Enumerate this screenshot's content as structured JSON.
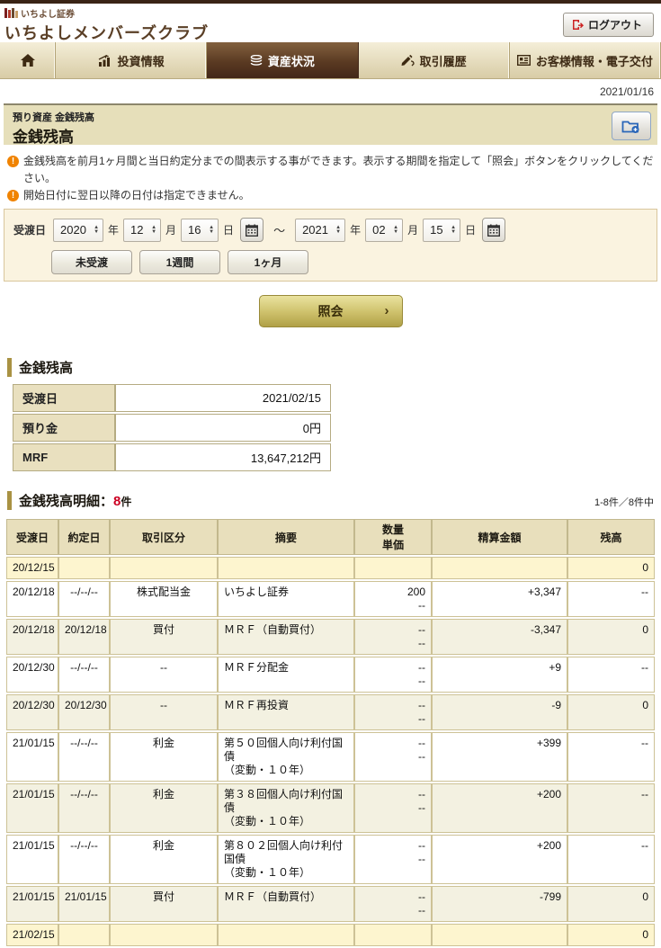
{
  "header": {
    "logo_text": "いちよし証券",
    "site_title": "いちよしメンバーズクラブ",
    "logout_label": "ログアウト"
  },
  "nav": {
    "tabs": [
      {
        "label": "投資情報",
        "icon": "chart"
      },
      {
        "label": "資産状況",
        "icon": "coins",
        "active": true
      },
      {
        "label": "取引履歴",
        "icon": "pen"
      },
      {
        "label": "お客様情報・電子交付",
        "icon": "card"
      }
    ]
  },
  "current_date": "2021/01/16",
  "page_header": {
    "breadcrumb": "預り資産 金銭残高",
    "title": "金銭残高"
  },
  "notices": [
    "金銭残高を前月1ヶ月間と当日約定分までの間表示する事ができます。表示する期間を指定して「照会」ボタンをクリックしてください。",
    "開始日付に翌日以降の日付は指定できません。"
  ],
  "search_form": {
    "field_label": "受渡日",
    "from": {
      "year": "2020",
      "month": "12",
      "day": "16"
    },
    "to": {
      "year": "2021",
      "month": "02",
      "day": "15"
    },
    "unit_year": "年",
    "unit_month": "月",
    "unit_day": "日",
    "range_separator": "～",
    "quick_buttons": [
      {
        "label": "未受渡"
      },
      {
        "label": "1週間"
      },
      {
        "label": "1ヶ月"
      }
    ],
    "submit_label": "照会",
    "submit_arrow": "›"
  },
  "summary": {
    "heading": "金銭残高",
    "rows": [
      {
        "label": "受渡日",
        "value": "2021/02/15"
      },
      {
        "label": "預り金",
        "value": "0円"
      },
      {
        "label": "MRF",
        "value": "13,647,212円"
      }
    ]
  },
  "detail": {
    "heading": "金銭残高明細：",
    "count": "8",
    "count_suffix": "件",
    "pagination": "1-8件／8件中",
    "columns": {
      "settle": "受渡日",
      "trade": "約定日",
      "type": "取引区分",
      "desc": "摘要",
      "qty": "数量",
      "unit": "単価",
      "amount": "精算金額",
      "balance": "残高"
    },
    "rows": [
      {
        "settle": "20/12/15",
        "trade": "",
        "type": "",
        "desc": "",
        "desc2": "",
        "qty": "",
        "unit": "",
        "amount": "",
        "sign": "",
        "balance": "0",
        "style": "hl"
      },
      {
        "settle": "20/12/18",
        "trade": "--/--/--",
        "type": "株式配当金",
        "desc": "いちよし証券",
        "desc2": "",
        "qty": "200",
        "unit": "--",
        "amount": "+3,347",
        "sign": "pos",
        "balance": "--",
        "style": "w"
      },
      {
        "settle": "20/12/18",
        "trade": "20/12/18",
        "type": "買付",
        "desc": "ＭＲＦ（自動買付）",
        "desc2": "",
        "qty": "--",
        "unit": "--",
        "amount": "-3,347",
        "sign": "neg",
        "balance": "0",
        "style": "a"
      },
      {
        "settle": "20/12/30",
        "trade": "--/--/--",
        "type": "--",
        "desc": "ＭＲＦ分配金",
        "desc2": "",
        "qty": "--",
        "unit": "--",
        "amount": "+9",
        "sign": "pos",
        "balance": "--",
        "style": "w"
      },
      {
        "settle": "20/12/30",
        "trade": "20/12/30",
        "type": "--",
        "desc": "ＭＲＦ再投資",
        "desc2": "",
        "qty": "--",
        "unit": "--",
        "amount": "-9",
        "sign": "neg",
        "balance": "0",
        "style": "a"
      },
      {
        "settle": "21/01/15",
        "trade": "--/--/--",
        "type": "利金",
        "desc": "第５０回個人向け利付国債",
        "desc2": "（変動・１０年）",
        "qty": "--",
        "unit": "--",
        "amount": "+399",
        "sign": "pos",
        "balance": "--",
        "style": "w"
      },
      {
        "settle": "21/01/15",
        "trade": "--/--/--",
        "type": "利金",
        "desc": "第３８回個人向け利付国債",
        "desc2": "（変動・１０年）",
        "qty": "--",
        "unit": "--",
        "amount": "+200",
        "sign": "pos",
        "balance": "--",
        "style": "a"
      },
      {
        "settle": "21/01/15",
        "trade": "--/--/--",
        "type": "利金",
        "desc": "第８０２回個人向け利付国債",
        "desc2": "（変動・１０年）",
        "qty": "--",
        "unit": "--",
        "amount": "+200",
        "sign": "pos",
        "balance": "--",
        "style": "w"
      },
      {
        "settle": "21/01/15",
        "trade": "21/01/15",
        "type": "買付",
        "desc": "ＭＲＦ（自動買付）",
        "desc2": "",
        "qty": "--",
        "unit": "--",
        "amount": "-799",
        "sign": "neg",
        "balance": "0",
        "style": "a"
      },
      {
        "settle": "21/02/15",
        "trade": "",
        "type": "",
        "desc": "",
        "desc2": "",
        "qty": "",
        "unit": "",
        "amount": "",
        "sign": "",
        "balance": "0",
        "style": "hl"
      }
    ]
  },
  "colors": {
    "positive_amount": "#cc0033",
    "negative_amount": "#1a5fc8",
    "active_tab": "#43291a",
    "accent_gold": "#a99243",
    "notice_orange": "#f08300"
  }
}
